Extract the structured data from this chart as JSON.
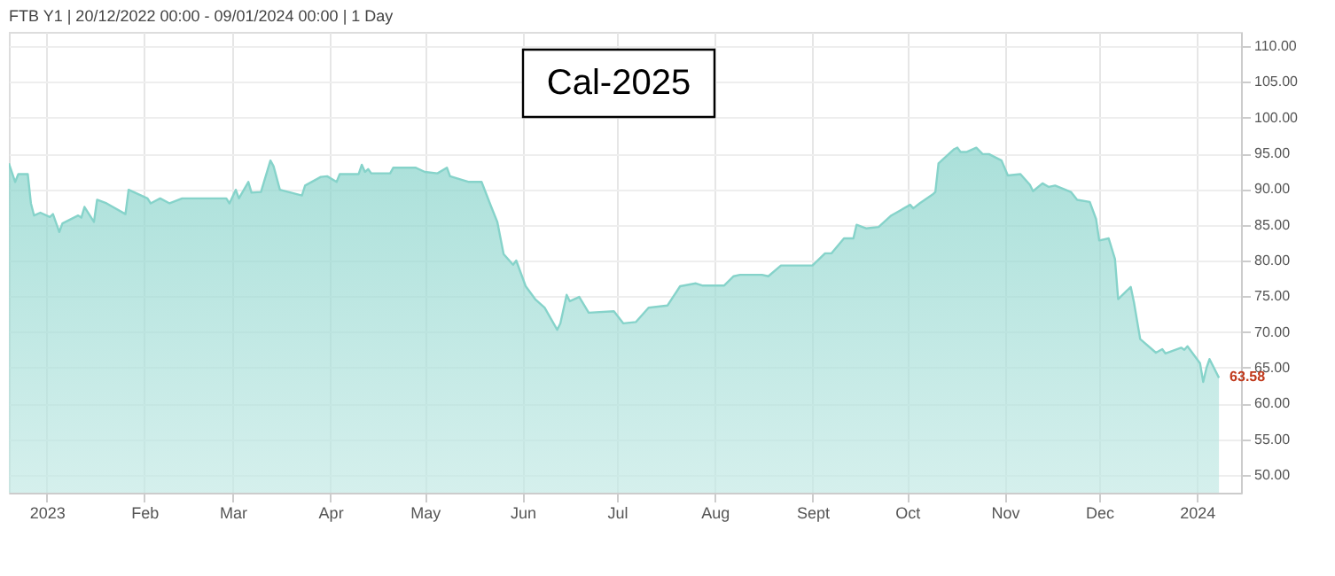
{
  "chart_data": {
    "type": "area",
    "title": "FTB Y1 | 20/12/2022 00:00 - 09/01/2024 00:00 | 1 Day",
    "annotations": [
      "Cal-2025",
      {
        "text": "63.58",
        "x": "2024-01-08",
        "y": 63.58
      }
    ],
    "x": [
      "2022-12-20",
      "2022-12-22",
      "2022-12-23",
      "2022-12-26",
      "2022-12-27",
      "2022-12-28",
      "2022-12-30",
      "2023-01-02",
      "2023-01-03",
      "2023-01-05",
      "2023-01-06",
      "2023-01-11",
      "2023-01-12",
      "2023-01-13",
      "2023-01-16",
      "2023-01-17",
      "2023-01-20",
      "2023-01-26",
      "2023-01-27",
      "2023-02-02",
      "2023-02-03",
      "2023-02-06",
      "2023-02-09",
      "2023-02-13",
      "2023-02-27",
      "2023-02-28",
      "2023-03-02",
      "2023-03-03",
      "2023-03-06",
      "2023-03-07",
      "2023-03-10",
      "2023-03-13",
      "2023-03-14",
      "2023-03-16",
      "2023-03-23",
      "2023-03-24",
      "2023-03-29",
      "2023-03-31",
      "2023-04-03",
      "2023-04-04",
      "2023-04-10",
      "2023-04-11",
      "2023-04-12",
      "2023-04-13",
      "2023-04-14",
      "2023-04-20",
      "2023-04-21",
      "2023-04-28",
      "2023-05-01",
      "2023-05-05",
      "2023-05-08",
      "2023-05-09",
      "2023-05-15",
      "2023-05-19",
      "2023-05-22",
      "2023-05-24",
      "2023-05-26",
      "2023-05-29",
      "2023-05-30",
      "2023-06-02",
      "2023-06-05",
      "2023-06-08",
      "2023-06-12",
      "2023-06-13",
      "2023-06-15",
      "2023-06-16",
      "2023-06-19",
      "2023-06-22",
      "2023-06-30",
      "2023-07-03",
      "2023-07-07",
      "2023-07-11",
      "2023-07-17",
      "2023-07-21",
      "2023-07-26",
      "2023-07-28",
      "2023-08-04",
      "2023-08-07",
      "2023-08-09",
      "2023-08-16",
      "2023-08-18",
      "2023-08-22",
      "2023-09-01",
      "2023-09-05",
      "2023-09-07",
      "2023-09-11",
      "2023-09-14",
      "2023-09-15",
      "2023-09-18",
      "2023-09-22",
      "2023-09-26",
      "2023-10-02",
      "2023-10-03",
      "2023-10-05",
      "2023-10-09",
      "2023-10-10",
      "2023-10-11",
      "2023-10-16",
      "2023-10-17",
      "2023-10-18",
      "2023-10-20",
      "2023-10-23",
      "2023-10-25",
      "2023-10-27",
      "2023-10-31",
      "2023-11-02",
      "2023-11-06",
      "2023-11-09",
      "2023-11-10",
      "2023-11-13",
      "2023-11-15",
      "2023-11-17",
      "2023-11-22",
      "2023-11-24",
      "2023-11-28",
      "2023-11-30",
      "2023-12-01",
      "2023-12-04",
      "2023-12-06",
      "2023-12-07",
      "2023-12-11",
      "2023-12-12",
      "2023-12-14",
      "2023-12-19",
      "2023-12-21",
      "2023-12-22",
      "2023-12-27",
      "2023-12-28",
      "2023-12-29",
      "2024-01-02",
      "2024-01-03",
      "2024-01-04",
      "2024-01-05",
      "2024-01-08"
    ],
    "series": [
      {
        "color": "#86d3ca",
        "values": [
          93.6,
          91.0,
          92.1,
          92.1,
          88.0,
          86.3,
          86.7,
          86.1,
          86.5,
          84.0,
          85.2,
          86.3,
          86.0,
          87.5,
          85.4,
          88.5,
          88.0,
          86.5,
          89.9,
          88.7,
          88.0,
          88.7,
          88.0,
          88.7,
          88.7,
          88.0,
          89.9,
          88.7,
          91.0,
          89.5,
          89.6,
          94.0,
          93.2,
          89.9,
          89.1,
          90.5,
          91.7,
          91.8,
          91.0,
          92.1,
          92.1,
          93.4,
          92.4,
          92.8,
          92.2,
          92.2,
          93.0,
          93.0,
          92.4,
          92.2,
          93.0,
          91.8,
          91.0,
          91.0,
          87.6,
          85.4,
          80.9,
          79.4,
          80.0,
          76.4,
          74.6,
          73.4,
          70.3,
          71.2,
          75.2,
          74.3,
          74.9,
          72.7,
          72.9,
          71.2,
          71.4,
          73.4,
          73.7,
          76.4,
          76.8,
          76.5,
          76.5,
          77.8,
          78.0,
          78.0,
          77.8,
          79.3,
          79.3,
          81.0,
          81.0,
          83.1,
          83.1,
          85.0,
          84.5,
          84.7,
          86.3,
          87.8,
          87.3,
          88.0,
          89.2,
          89.6,
          93.6,
          95.6,
          95.8,
          95.2,
          95.2,
          95.8,
          94.9,
          94.9,
          94.0,
          91.9,
          92.1,
          90.6,
          89.7,
          90.8,
          90.3,
          90.5,
          89.6,
          88.5,
          88.2,
          85.8,
          82.8,
          83.1,
          80.2,
          74.6,
          76.3,
          74.2,
          69.0,
          67.1,
          67.6,
          67.0,
          67.8,
          67.5,
          68.0,
          65.6,
          63.0,
          64.9,
          66.2,
          63.58
        ]
      }
    ],
    "xlim": [
      "2022-12-20",
      "2024-01-15"
    ],
    "xticks": [
      {
        "value": "2023-01-01",
        "label": "2023"
      },
      {
        "value": "2023-02-01",
        "label": "Feb"
      },
      {
        "value": "2023-03-01",
        "label": "Mar"
      },
      {
        "value": "2023-04-01",
        "label": "Apr"
      },
      {
        "value": "2023-05-01",
        "label": "May"
      },
      {
        "value": "2023-06-01",
        "label": "Jun"
      },
      {
        "value": "2023-07-01",
        "label": "Jul"
      },
      {
        "value": "2023-08-01",
        "label": "Aug"
      },
      {
        "value": "2023-09-01",
        "label": "Sept"
      },
      {
        "value": "2023-10-01",
        "label": "Oct"
      },
      {
        "value": "2023-11-01",
        "label": "Nov"
      },
      {
        "value": "2023-12-01",
        "label": "Dec"
      },
      {
        "value": "2024-01-01",
        "label": "2024"
      }
    ],
    "ylim": [
      47.5,
      112
    ],
    "yticks": [
      {
        "value": 50,
        "label": "50.00"
      },
      {
        "value": 55,
        "label": "55.00"
      },
      {
        "value": 60,
        "label": "60.00"
      },
      {
        "value": 65,
        "label": "65.00"
      },
      {
        "value": 70,
        "label": "70.00"
      },
      {
        "value": 75,
        "label": "75.00"
      },
      {
        "value": 80,
        "label": "80.00"
      },
      {
        "value": 85,
        "label": "85.00"
      },
      {
        "value": 90,
        "label": "90.00"
      },
      {
        "value": 95,
        "label": "95.00"
      },
      {
        "value": 100,
        "label": "100.00"
      },
      {
        "value": 105,
        "label": "105.00"
      },
      {
        "value": 110,
        "label": "110.00"
      }
    ],
    "grid": true
  }
}
